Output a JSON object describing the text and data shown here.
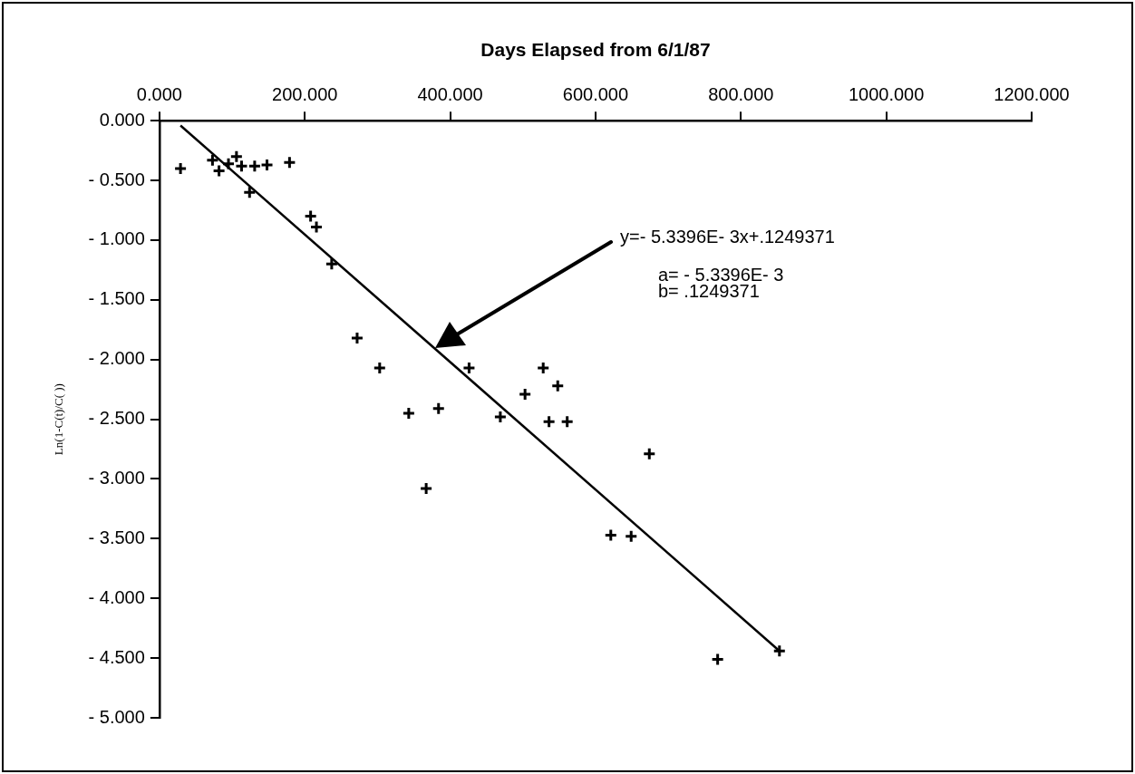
{
  "chart_data": {
    "type": "scatter",
    "xlabel": "Days Elapsed from 6/1/87",
    "ylabel": "Ln(1-C(t)/C( ))",
    "xlim": [
      0,
      1200
    ],
    "ylim": [
      -5,
      0
    ],
    "xticks": [
      {
        "value": 0,
        "label": "0.000"
      },
      {
        "value": 200,
        "label": "200.000"
      },
      {
        "value": 400,
        "label": "400.000"
      },
      {
        "value": 600,
        "label": "600.000"
      },
      {
        "value": 800,
        "label": "800.000"
      },
      {
        "value": 1000,
        "label": "1000.000"
      },
      {
        "value": 1200,
        "label": "1200.000"
      }
    ],
    "yticks": [
      {
        "value": 0,
        "label": "0.000"
      },
      {
        "value": -0.5,
        "label": "- 0.500"
      },
      {
        "value": -1,
        "label": "- 1.000"
      },
      {
        "value": -1.5,
        "label": "- 1.500"
      },
      {
        "value": -2,
        "label": "- 2.000"
      },
      {
        "value": -2.5,
        "label": "- 2.500"
      },
      {
        "value": -3,
        "label": "- 3.000"
      },
      {
        "value": -3.5,
        "label": "- 3.500"
      },
      {
        "value": -4,
        "label": "- 4.000"
      },
      {
        "value": -4.5,
        "label": "- 4.500"
      },
      {
        "value": -5,
        "label": "- 5.000"
      }
    ],
    "series": [
      {
        "color": "#000000",
        "marker": "cross",
        "x": [
          29,
          73,
          82,
          95,
          106,
          113,
          124,
          131,
          148,
          179,
          208,
          216,
          237,
          272,
          303,
          343,
          367,
          384,
          426,
          469,
          503,
          528,
          536,
          548,
          561,
          621,
          649,
          674,
          768,
          853
        ],
        "values": [
          -0.4,
          -0.33,
          -0.42,
          -0.36,
          -0.3,
          -0.38,
          -0.6,
          -0.38,
          -0.37,
          -0.35,
          -0.8,
          -0.89,
          -1.2,
          -1.82,
          -2.07,
          -2.45,
          -3.08,
          -2.41,
          -2.07,
          -2.48,
          -2.29,
          -2.07,
          -2.52,
          -2.22,
          -2.52,
          -3.47,
          -3.48,
          -2.79,
          -4.51,
          -4.44
        ]
      },
      {
        "type": "line",
        "color": "#000000",
        "marker": "none",
        "x": [
          29,
          853
        ],
        "values": [
          -0.04,
          -4.44
        ]
      }
    ],
    "annotations": [
      "y=- 5.3396E- 3x+.1249371",
      "a= - 5.3396E- 3",
      "b= .1249371"
    ]
  }
}
